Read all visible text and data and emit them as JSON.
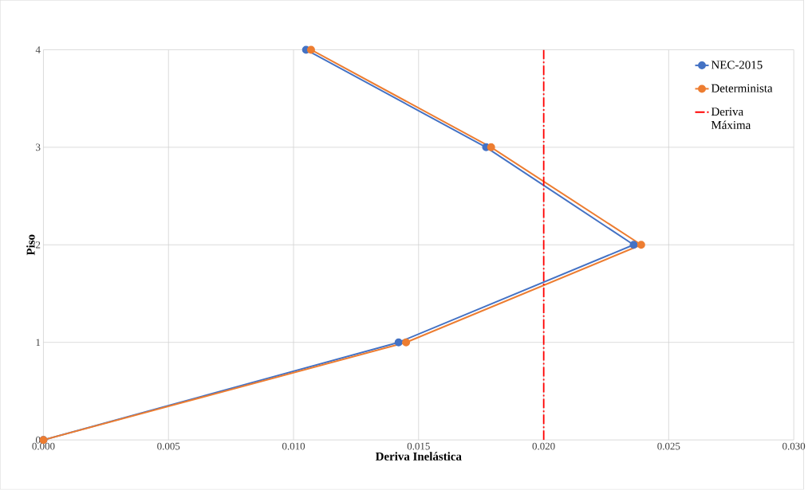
{
  "chart_data": {
    "type": "line",
    "xlabel": "Deriva Inelástica",
    "ylabel": "Piso",
    "xlim": [
      0,
      0.03
    ],
    "xticks": [
      {
        "value": 0,
        "label": "0.000"
      },
      {
        "value": 0.005,
        "label": "0.005"
      },
      {
        "value": 0.01,
        "label": "0.010"
      },
      {
        "value": 0.015,
        "label": "0.015"
      },
      {
        "value": 0.02,
        "label": "0.020"
      },
      {
        "value": 0.025,
        "label": "0.025"
      },
      {
        "value": 0.03,
        "label": "0.030"
      }
    ],
    "ylim": [
      0,
      4
    ],
    "yticks": [
      0,
      1,
      2,
      3,
      4
    ],
    "grid": true,
    "legend": "top right",
    "marker": "circle",
    "line_style": "solid",
    "series": [
      {
        "name": "NEC-2015",
        "color": "#4472c4",
        "x": [
          0,
          0.0142,
          0.0236,
          0.0177,
          0.0105
        ],
        "values": [
          0,
          1,
          2,
          3,
          4
        ]
      },
      {
        "name": "Determinista",
        "color": "#ed7d31",
        "x": [
          0,
          0.0145,
          0.0239,
          0.0179,
          0.0107
        ],
        "values": [
          0,
          1,
          2,
          3,
          4
        ]
      },
      {
        "name": "Deriva Máxima",
        "color": "#ff0000",
        "x": [
          0.02,
          0.02
        ],
        "values": [
          0,
          4
        ],
        "marker": "none",
        "line_style": "dashed"
      }
    ]
  }
}
